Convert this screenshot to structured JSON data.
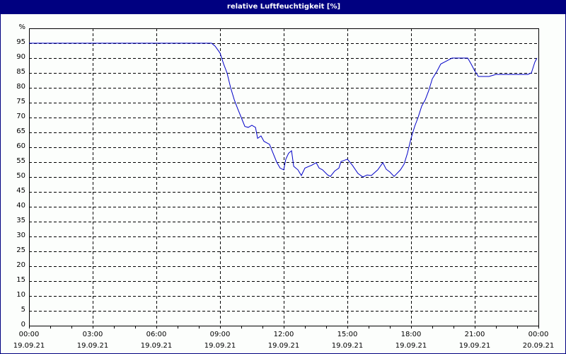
{
  "window": {
    "title": "relative Luftfeuchtigkeit [%]"
  },
  "chart_data": {
    "type": "line",
    "title": "relative Luftfeuchtigkeit [%]",
    "xlabel": "",
    "ylabel": "%",
    "ylim": [
      0,
      100
    ],
    "xlim_hours": [
      0,
      24
    ],
    "grid": true,
    "legend": null,
    "y_ticks": [
      "0",
      "5",
      "10",
      "15",
      "20",
      "25",
      "30",
      "35",
      "40",
      "45",
      "50",
      "55",
      "60",
      "65",
      "70",
      "75",
      "80",
      "85",
      "90",
      "95",
      "%"
    ],
    "x_ticks": [
      {
        "time": "00:00",
        "date": "19.09.21"
      },
      {
        "time": "03:00",
        "date": "19.09.21"
      },
      {
        "time": "06:00",
        "date": "19.09.21"
      },
      {
        "time": "09:00",
        "date": "19.09.21"
      },
      {
        "time": "12:00",
        "date": "19.09.21"
      },
      {
        "time": "15:00",
        "date": "19.09.21"
      },
      {
        "time": "18:00",
        "date": "19.09.21"
      },
      {
        "time": "21:00",
        "date": "19.09.21"
      },
      {
        "time": "00:00",
        "date": "20.09.21"
      }
    ],
    "series": [
      {
        "name": "relative Luftfeuchtigkeit",
        "color": "#0000c8",
        "x_hours": [
          0,
          8.6,
          8.77,
          9.0,
          9.17,
          9.33,
          9.5,
          9.67,
          9.83,
          10.0,
          10.17,
          10.33,
          10.5,
          10.67,
          10.77,
          10.93,
          11.07,
          11.33,
          11.5,
          11.67,
          11.83,
          12.0,
          12.1,
          12.23,
          12.37,
          12.47,
          12.67,
          12.83,
          13.0,
          13.33,
          13.53,
          13.67,
          13.83,
          14.07,
          14.2,
          14.4,
          14.6,
          14.7,
          15.0,
          15.23,
          15.5,
          15.73,
          15.93,
          16.13,
          16.43,
          16.67,
          16.83,
          17.0,
          17.2,
          17.5,
          17.67,
          17.83,
          18.0,
          18.17,
          18.33,
          18.5,
          18.67,
          18.83,
          19.0,
          19.23,
          19.4,
          19.67,
          19.93,
          20.67,
          20.83,
          21.0,
          21.17,
          21.67,
          22.0,
          23.5,
          23.67,
          23.83,
          23.93
        ],
        "values": [
          95,
          95,
          94,
          91.7,
          88,
          85,
          80,
          76,
          73,
          70,
          67,
          66.7,
          67.4,
          66.7,
          63,
          63.8,
          62,
          61,
          58,
          55,
          53,
          52.4,
          56,
          58,
          58.8,
          53.6,
          52.4,
          50.5,
          53,
          54,
          54.8,
          53,
          52.4,
          50.7,
          50.2,
          52,
          53,
          55.2,
          56,
          54,
          51.2,
          50,
          50.7,
          50.5,
          52.4,
          54.8,
          52.6,
          51.7,
          50.2,
          52.4,
          54.3,
          58,
          63,
          67,
          70,
          73.8,
          76,
          79,
          83,
          85.7,
          88,
          89,
          90,
          90,
          88,
          85.7,
          83.8,
          83.8,
          84.5,
          84.5,
          85,
          88.6,
          90
        ]
      }
    ]
  },
  "colors": {
    "frame": "#000080",
    "line": "#0000c8",
    "grid": "#000000",
    "background": "#fcfefc"
  }
}
